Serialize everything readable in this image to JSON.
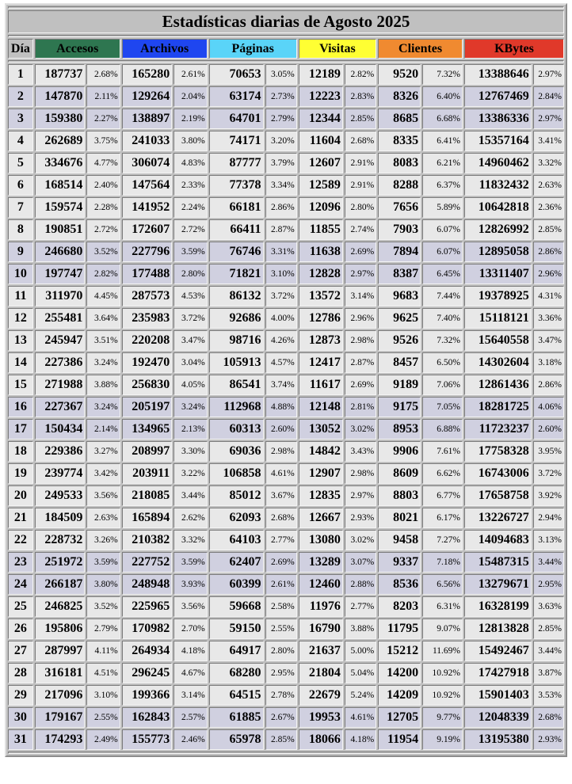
{
  "table": {
    "title": "Estadísticas diarias de Agosto 2025",
    "headers": [
      "Día",
      "Accesos",
      "Archivos",
      "Páginas",
      "Visitas",
      "Clientes",
      "KBytes"
    ],
    "header_colors": [
      "#c0c0c0",
      "#2e7650",
      "#1f46f0",
      "#5ad4f8",
      "#ffff33",
      "#f08a30",
      "#e0392a"
    ],
    "rows": [
      {
        "shaded": false,
        "cells": [
          "1",
          "187737",
          "2.68%",
          "165280",
          "2.61%",
          "70653",
          "3.05%",
          "12189",
          "2.82%",
          "9520",
          "7.32%",
          "13388646",
          "2.97%"
        ]
      },
      {
        "shaded": true,
        "cells": [
          "2",
          "147870",
          "2.11%",
          "129264",
          "2.04%",
          "63174",
          "2.73%",
          "12223",
          "2.83%",
          "8326",
          "6.40%",
          "12767469",
          "2.84%"
        ]
      },
      {
        "shaded": true,
        "cells": [
          "3",
          "159380",
          "2.27%",
          "138897",
          "2.19%",
          "64701",
          "2.79%",
          "12344",
          "2.85%",
          "8685",
          "6.68%",
          "13386336",
          "2.97%"
        ]
      },
      {
        "shaded": false,
        "cells": [
          "4",
          "262689",
          "3.75%",
          "241033",
          "3.80%",
          "74171",
          "3.20%",
          "11604",
          "2.68%",
          "8335",
          "6.41%",
          "15357164",
          "3.41%"
        ]
      },
      {
        "shaded": false,
        "cells": [
          "5",
          "334676",
          "4.77%",
          "306074",
          "4.83%",
          "87777",
          "3.79%",
          "12607",
          "2.91%",
          "8083",
          "6.21%",
          "14960462",
          "3.32%"
        ]
      },
      {
        "shaded": false,
        "cells": [
          "6",
          "168514",
          "2.40%",
          "147564",
          "2.33%",
          "77378",
          "3.34%",
          "12589",
          "2.91%",
          "8288",
          "6.37%",
          "11832432",
          "2.63%"
        ]
      },
      {
        "shaded": false,
        "cells": [
          "7",
          "159574",
          "2.28%",
          "141952",
          "2.24%",
          "66181",
          "2.86%",
          "12096",
          "2.80%",
          "7656",
          "5.89%",
          "10642818",
          "2.36%"
        ]
      },
      {
        "shaded": false,
        "cells": [
          "8",
          "190851",
          "2.72%",
          "172607",
          "2.72%",
          "66411",
          "2.87%",
          "11855",
          "2.74%",
          "7903",
          "6.07%",
          "12826992",
          "2.85%"
        ]
      },
      {
        "shaded": true,
        "cells": [
          "9",
          "246680",
          "3.52%",
          "227796",
          "3.59%",
          "76746",
          "3.31%",
          "11638",
          "2.69%",
          "7894",
          "6.07%",
          "12895058",
          "2.86%"
        ]
      },
      {
        "shaded": true,
        "cells": [
          "10",
          "197747",
          "2.82%",
          "177488",
          "2.80%",
          "71821",
          "3.10%",
          "12828",
          "2.97%",
          "8387",
          "6.45%",
          "13311407",
          "2.96%"
        ]
      },
      {
        "shaded": false,
        "cells": [
          "11",
          "311970",
          "4.45%",
          "287573",
          "4.53%",
          "86132",
          "3.72%",
          "13572",
          "3.14%",
          "9683",
          "7.44%",
          "19378925",
          "4.31%"
        ]
      },
      {
        "shaded": false,
        "cells": [
          "12",
          "255481",
          "3.64%",
          "235983",
          "3.72%",
          "92686",
          "4.00%",
          "12786",
          "2.96%",
          "9625",
          "7.40%",
          "15118121",
          "3.36%"
        ]
      },
      {
        "shaded": false,
        "cells": [
          "13",
          "245947",
          "3.51%",
          "220208",
          "3.47%",
          "98716",
          "4.26%",
          "12873",
          "2.98%",
          "9526",
          "7.32%",
          "15640558",
          "3.47%"
        ]
      },
      {
        "shaded": false,
        "cells": [
          "14",
          "227386",
          "3.24%",
          "192470",
          "3.04%",
          "105913",
          "4.57%",
          "12417",
          "2.87%",
          "8457",
          "6.50%",
          "14302604",
          "3.18%"
        ]
      },
      {
        "shaded": false,
        "cells": [
          "15",
          "271988",
          "3.88%",
          "256830",
          "4.05%",
          "86541",
          "3.74%",
          "11617",
          "2.69%",
          "9189",
          "7.06%",
          "12861436",
          "2.86%"
        ]
      },
      {
        "shaded": true,
        "cells": [
          "16",
          "227367",
          "3.24%",
          "205197",
          "3.24%",
          "112968",
          "4.88%",
          "12148",
          "2.81%",
          "9175",
          "7.05%",
          "18281725",
          "4.06%"
        ]
      },
      {
        "shaded": true,
        "cells": [
          "17",
          "150434",
          "2.14%",
          "134965",
          "2.13%",
          "60313",
          "2.60%",
          "13052",
          "3.02%",
          "8953",
          "6.88%",
          "11723237",
          "2.60%"
        ]
      },
      {
        "shaded": false,
        "cells": [
          "18",
          "229386",
          "3.27%",
          "208997",
          "3.30%",
          "69036",
          "2.98%",
          "14842",
          "3.43%",
          "9906",
          "7.61%",
          "17758328",
          "3.95%"
        ]
      },
      {
        "shaded": false,
        "cells": [
          "19",
          "239774",
          "3.42%",
          "203911",
          "3.22%",
          "106858",
          "4.61%",
          "12907",
          "2.98%",
          "8609",
          "6.62%",
          "16743006",
          "3.72%"
        ]
      },
      {
        "shaded": false,
        "cells": [
          "20",
          "249533",
          "3.56%",
          "218085",
          "3.44%",
          "85012",
          "3.67%",
          "12835",
          "2.97%",
          "8803",
          "6.77%",
          "17658758",
          "3.92%"
        ]
      },
      {
        "shaded": false,
        "cells": [
          "21",
          "184509",
          "2.63%",
          "165894",
          "2.62%",
          "62093",
          "2.68%",
          "12667",
          "2.93%",
          "8021",
          "6.17%",
          "13226727",
          "2.94%"
        ]
      },
      {
        "shaded": false,
        "cells": [
          "22",
          "228732",
          "3.26%",
          "210382",
          "3.32%",
          "64103",
          "2.77%",
          "13080",
          "3.02%",
          "9458",
          "7.27%",
          "14094683",
          "3.13%"
        ]
      },
      {
        "shaded": true,
        "cells": [
          "23",
          "251972",
          "3.59%",
          "227752",
          "3.59%",
          "62407",
          "2.69%",
          "13289",
          "3.07%",
          "9337",
          "7.18%",
          "15487315",
          "3.44%"
        ]
      },
      {
        "shaded": true,
        "cells": [
          "24",
          "266187",
          "3.80%",
          "248948",
          "3.93%",
          "60399",
          "2.61%",
          "12460",
          "2.88%",
          "8536",
          "6.56%",
          "13279671",
          "2.95%"
        ]
      },
      {
        "shaded": false,
        "cells": [
          "25",
          "246825",
          "3.52%",
          "225965",
          "3.56%",
          "59668",
          "2.58%",
          "11976",
          "2.77%",
          "8203",
          "6.31%",
          "16328199",
          "3.63%"
        ]
      },
      {
        "shaded": false,
        "cells": [
          "26",
          "195806",
          "2.79%",
          "170982",
          "2.70%",
          "59150",
          "2.55%",
          "16790",
          "3.88%",
          "11795",
          "9.07%",
          "12813828",
          "2.85%"
        ]
      },
      {
        "shaded": false,
        "cells": [
          "27",
          "287997",
          "4.11%",
          "264934",
          "4.18%",
          "64917",
          "2.80%",
          "21637",
          "5.00%",
          "15212",
          "11.69%",
          "15492467",
          "3.44%"
        ]
      },
      {
        "shaded": false,
        "cells": [
          "28",
          "316181",
          "4.51%",
          "296245",
          "4.67%",
          "68280",
          "2.95%",
          "21804",
          "5.04%",
          "14200",
          "10.92%",
          "17427918",
          "3.87%"
        ]
      },
      {
        "shaded": false,
        "cells": [
          "29",
          "217096",
          "3.10%",
          "199366",
          "3.14%",
          "64515",
          "2.78%",
          "22679",
          "5.24%",
          "14209",
          "10.92%",
          "15901403",
          "3.53%"
        ]
      },
      {
        "shaded": true,
        "cells": [
          "30",
          "179167",
          "2.55%",
          "162843",
          "2.57%",
          "61885",
          "2.67%",
          "19953",
          "4.61%",
          "12705",
          "9.77%",
          "12048339",
          "2.68%"
        ]
      },
      {
        "shaded": true,
        "cells": [
          "31",
          "174293",
          "2.49%",
          "155773",
          "2.46%",
          "65978",
          "2.85%",
          "18066",
          "4.18%",
          "11954",
          "9.19%",
          "13195380",
          "2.93%"
        ]
      }
    ]
  }
}
